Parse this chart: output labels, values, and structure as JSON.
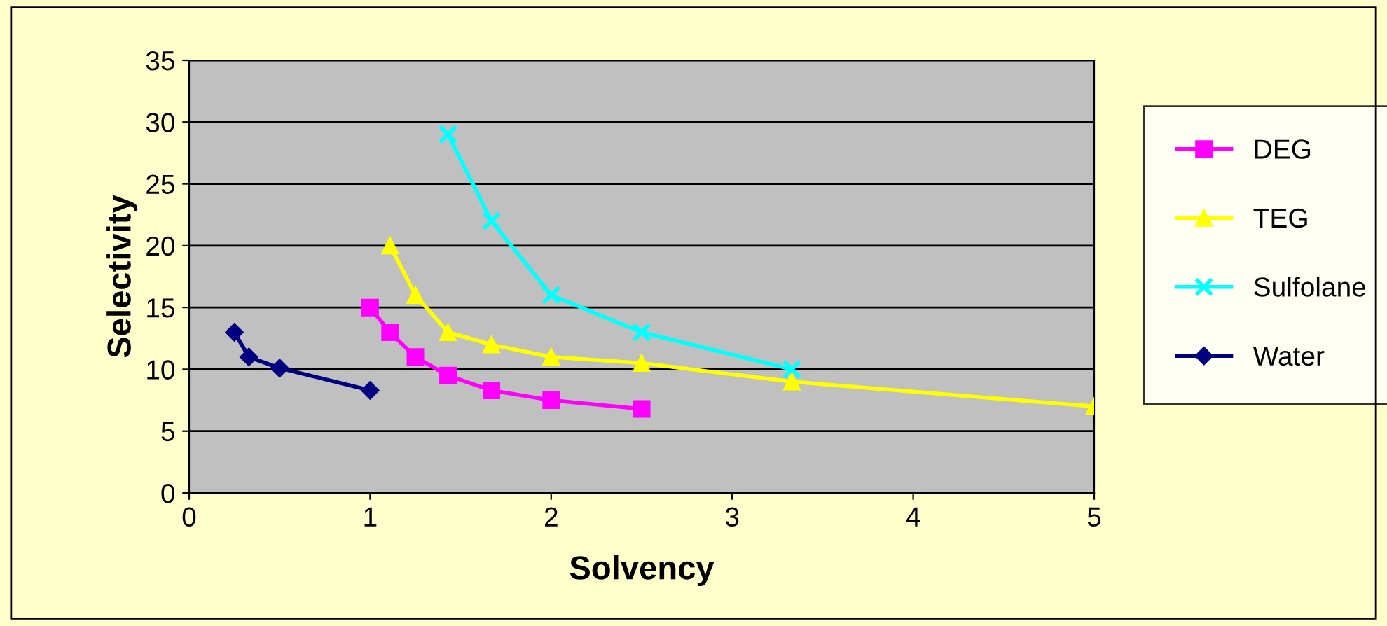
{
  "chart_data": {
    "type": "line",
    "xlabel": "Solvency",
    "ylabel": "Selectivity",
    "xlim": [
      0,
      5
    ],
    "xticks": [
      0,
      1,
      2,
      3,
      4,
      5
    ],
    "ylim": [
      0,
      35
    ],
    "yticks": [
      0,
      5,
      10,
      15,
      20,
      25,
      30,
      35
    ],
    "grid": "y",
    "legend": "right",
    "line_style": "solid",
    "series": [
      {
        "name": "DEG",
        "color": "#ff00ff",
        "marker": "square",
        "x": [
          1,
          1.11,
          1.25,
          1.43,
          1.67,
          2,
          2.5
        ],
        "values": [
          15,
          13,
          11,
          9.5,
          8.3,
          7.5,
          6.8
        ]
      },
      {
        "name": "TEG",
        "color": "#ffff00",
        "marker": "triangle",
        "x": [
          1.11,
          1.25,
          1.43,
          1.67,
          2,
          2.5,
          3.33,
          5
        ],
        "values": [
          20,
          16,
          13,
          12,
          11,
          10.5,
          9,
          7
        ]
      },
      {
        "name": "Sulfolane",
        "color": "#00ffff",
        "marker": "cross",
        "x": [
          1.43,
          1.67,
          2,
          2.5,
          3.33
        ],
        "values": [
          29,
          22,
          16,
          13,
          10
        ]
      },
      {
        "name": "Water",
        "color": "#000080",
        "marker": "diamond",
        "x": [
          0.25,
          0.33,
          0.5,
          1
        ],
        "values": [
          13,
          11,
          10.1,
          8.3
        ]
      }
    ]
  }
}
